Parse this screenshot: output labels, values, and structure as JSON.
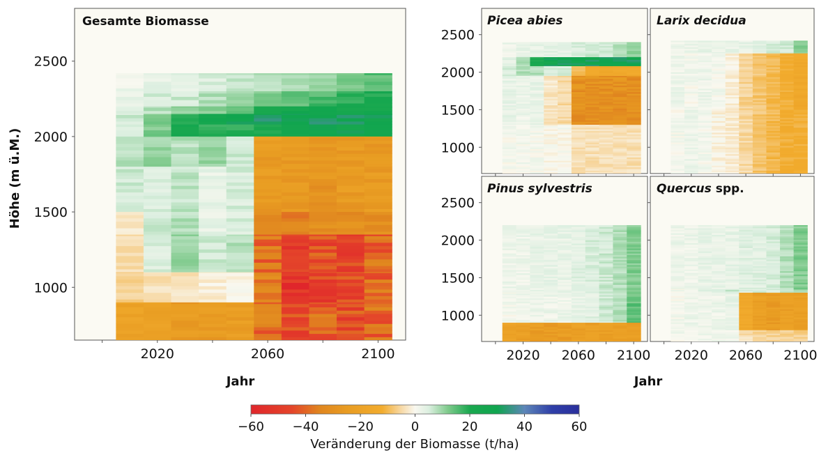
{
  "chart_data": [
    {
      "type": "heatmap",
      "title": "Gesamte Biomasse",
      "xlabel": "Jahr",
      "ylabel": "Höhe (m ü.M.)",
      "xlim": [
        1990,
        2110
      ],
      "ylim": [
        650,
        2850
      ],
      "x_ticks": [
        2020,
        2060,
        2100
      ],
      "y_ticks": [
        1000,
        1500,
        2000,
        2500
      ],
      "columns": [
        2010,
        2020,
        2030,
        2040,
        2050,
        2060,
        2070,
        2080,
        2090,
        2100
      ],
      "rows_by_elevation": [
        {
          "band": [
            2300,
            2420
          ],
          "values": [
            2,
            3,
            4,
            5,
            6,
            8,
            9,
            10,
            12,
            15
          ]
        },
        {
          "band": [
            2200,
            2300
          ],
          "values": [
            3,
            5,
            6,
            8,
            10,
            12,
            14,
            16,
            20,
            22
          ]
        },
        {
          "band": [
            2150,
            2200
          ],
          "values": [
            5,
            8,
            10,
            12,
            15,
            22,
            25,
            25,
            25,
            25
          ]
        },
        {
          "band": [
            2080,
            2150
          ],
          "values": [
            6,
            12,
            18,
            25,
            28,
            30,
            30,
            30,
            30,
            30
          ]
        },
        {
          "band": [
            2000,
            2080
          ],
          "values": [
            6,
            12,
            22,
            20,
            18,
            22,
            28,
            26,
            28,
            26
          ]
        },
        {
          "band": [
            1800,
            2000
          ],
          "values": [
            8,
            10,
            8,
            10,
            6,
            -25,
            -25,
            -25,
            -25,
            -25
          ]
        },
        {
          "band": [
            1500,
            1800
          ],
          "values": [
            6,
            5,
            7,
            3,
            5,
            -25,
            -25,
            -28,
            -25,
            -25
          ]
        },
        {
          "band": [
            1350,
            1500
          ],
          "values": [
            -3,
            6,
            8,
            3,
            5,
            -30,
            -35,
            -32,
            -30,
            -30
          ]
        },
        {
          "band": [
            1100,
            1350
          ],
          "values": [
            -4,
            5,
            10,
            6,
            8,
            -38,
            -50,
            -45,
            -48,
            -40
          ]
        },
        {
          "band": [
            900,
            1100
          ],
          "values": [
            -6,
            -4,
            -3,
            -2,
            -1,
            -35,
            -55,
            -48,
            -45,
            -40
          ]
        },
        {
          "band": [
            650,
            900
          ],
          "values": [
            -20,
            -22,
            -25,
            -25,
            -24,
            -38,
            -45,
            -42,
            -45,
            -40
          ]
        }
      ]
    },
    {
      "type": "heatmap",
      "title": "Picea abies",
      "xlim": [
        1990,
        2110
      ],
      "ylim": [
        650,
        2850
      ],
      "y_ticks": [
        1000,
        1500,
        2000,
        2500
      ],
      "columns": [
        2010,
        2020,
        2030,
        2040,
        2050,
        2060,
        2070,
        2080,
        2090,
        2100
      ],
      "rows_by_elevation": [
        {
          "band": [
            2200,
            2400
          ],
          "values": [
            2,
            3,
            3,
            4,
            4,
            5,
            6,
            6,
            8,
            10
          ]
        },
        {
          "band": [
            2080,
            2200
          ],
          "values": [
            4,
            8,
            22,
            28,
            30,
            30,
            30,
            30,
            30,
            30
          ]
        },
        {
          "band": [
            1950,
            2080
          ],
          "values": [
            5,
            8,
            8,
            6,
            5,
            -10,
            -15,
            -15,
            -15,
            -15
          ]
        },
        {
          "band": [
            1300,
            1950
          ],
          "values": [
            3,
            2,
            3,
            -3,
            -5,
            -30,
            -30,
            -30,
            -30,
            -30
          ]
        },
        {
          "band": [
            650,
            1300
          ],
          "values": [
            1,
            1,
            1,
            0,
            0,
            -4,
            -4,
            -4,
            -4,
            -4
          ]
        }
      ]
    },
    {
      "type": "heatmap",
      "title": "Larix decidua",
      "xlim": [
        1990,
        2110
      ],
      "ylim": [
        650,
        2850
      ],
      "columns": [
        2010,
        2020,
        2030,
        2040,
        2050,
        2060,
        2070,
        2080,
        2090,
        2100
      ],
      "rows_by_elevation": [
        {
          "band": [
            2250,
            2420
          ],
          "values": [
            2,
            2,
            3,
            3,
            3,
            3,
            4,
            5,
            6,
            12
          ]
        },
        {
          "band": [
            1500,
            2250
          ],
          "values": [
            2,
            1,
            2,
            1,
            -2,
            -6,
            -8,
            -10,
            -12,
            -15
          ]
        },
        {
          "band": [
            650,
            1500
          ],
          "values": [
            1,
            2,
            1,
            -1,
            -2,
            -5,
            -8,
            -10,
            -12,
            -12
          ]
        }
      ]
    },
    {
      "type": "heatmap",
      "title": "Pinus sylvestris",
      "xlim": [
        1990,
        2110
      ],
      "ylim": [
        650,
        2850
      ],
      "y_ticks": [
        1000,
        1500,
        2000,
        2500
      ],
      "x_ticks": [
        2020,
        2060,
        2100
      ],
      "columns": [
        2010,
        2020,
        2030,
        2040,
        2050,
        2060,
        2070,
        2080,
        2090,
        2100
      ],
      "rows_by_elevation": [
        {
          "band": [
            1300,
            2200
          ],
          "values": [
            2,
            2,
            3,
            3,
            3,
            4,
            5,
            6,
            8,
            12
          ]
        },
        {
          "band": [
            900,
            1300
          ],
          "values": [
            1,
            2,
            2,
            2,
            2,
            3,
            4,
            6,
            8,
            14
          ]
        },
        {
          "band": [
            650,
            900
          ],
          "values": [
            -20,
            -22,
            -24,
            -24,
            -24,
            -22,
            -22,
            -22,
            -22,
            -22
          ]
        }
      ]
    },
    {
      "type": "heatmap",
      "title": "Quercus spp.",
      "xlim": [
        1990,
        2110
      ],
      "ylim": [
        650,
        2850
      ],
      "x_ticks": [
        2020,
        2060,
        2100
      ],
      "columns": [
        2010,
        2020,
        2030,
        2040,
        2050,
        2060,
        2070,
        2080,
        2090,
        2100
      ],
      "rows_by_elevation": [
        {
          "band": [
            1350,
            2200
          ],
          "values": [
            2,
            2,
            3,
            3,
            3,
            4,
            4,
            5,
            8,
            12
          ]
        },
        {
          "band": [
            1300,
            1350
          ],
          "values": [
            1,
            2,
            4,
            6,
            6,
            5,
            5,
            6,
            8,
            10
          ]
        },
        {
          "band": [
            800,
            1300
          ],
          "values": [
            1,
            2,
            2,
            2,
            3,
            -15,
            -22,
            -24,
            -22,
            -22
          ]
        },
        {
          "band": [
            650,
            800
          ],
          "values": [
            1,
            1,
            2,
            2,
            2,
            -4,
            -6,
            -6,
            -6,
            -6
          ]
        }
      ]
    }
  ],
  "shared_xlabel": "Jahr",
  "colorbar": {
    "label": "Veränderung der Biomasse (t/ha)",
    "range": [
      -60,
      60
    ],
    "ticks": [
      -60,
      -40,
      -20,
      0,
      20,
      40,
      60
    ],
    "tick_labels": [
      "−60",
      "−40",
      "−20",
      "0",
      "20",
      "40",
      "60"
    ],
    "stops": [
      {
        "value": -60,
        "color": "#e0262b"
      },
      {
        "value": -45,
        "color": "#e4452a"
      },
      {
        "value": -35,
        "color": "#e0851f"
      },
      {
        "value": -25,
        "color": "#e89c22"
      },
      {
        "value": -12,
        "color": "#f2ac2e"
      },
      {
        "value": -5,
        "color": "#f7d9a6"
      },
      {
        "value": 0,
        "color": "#f9f8f0"
      },
      {
        "value": 5,
        "color": "#dcefe0"
      },
      {
        "value": 12,
        "color": "#7fca8c"
      },
      {
        "value": 20,
        "color": "#1aa84f"
      },
      {
        "value": 30,
        "color": "#10a54f"
      },
      {
        "value": 40,
        "color": "#5d86b8"
      },
      {
        "value": 50,
        "color": "#2f3fa8"
      },
      {
        "value": 60,
        "color": "#2a2f9c"
      }
    ]
  }
}
